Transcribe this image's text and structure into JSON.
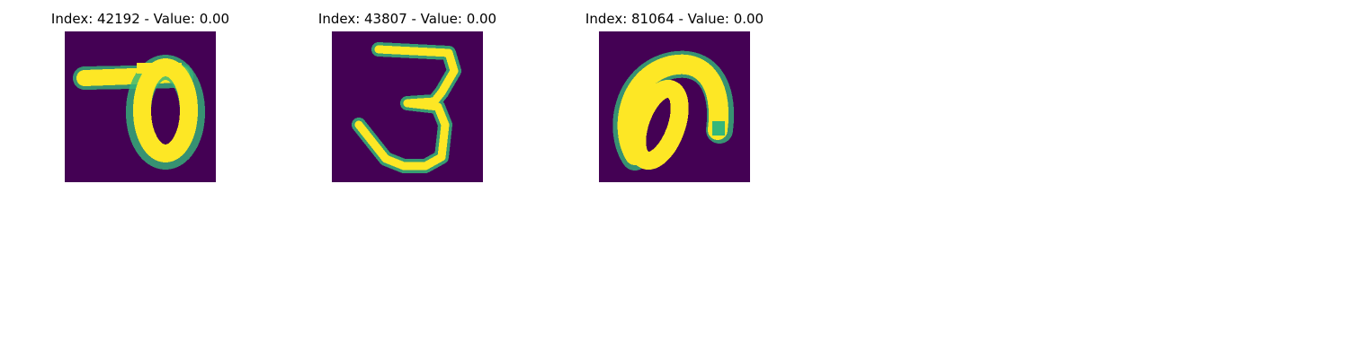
{
  "panels": [
    {
      "title": "Index: 42192 - Value: 0.00"
    },
    {
      "title": "Index: 43807 - Value: 0.00"
    },
    {
      "title": "Index: 81064 - Value: 0.00"
    }
  ],
  "colors": {
    "background": "#440154",
    "mid_low": "#31688e",
    "mid": "#35b779",
    "mid_high": "#90d743",
    "foreground": "#fde725"
  }
}
